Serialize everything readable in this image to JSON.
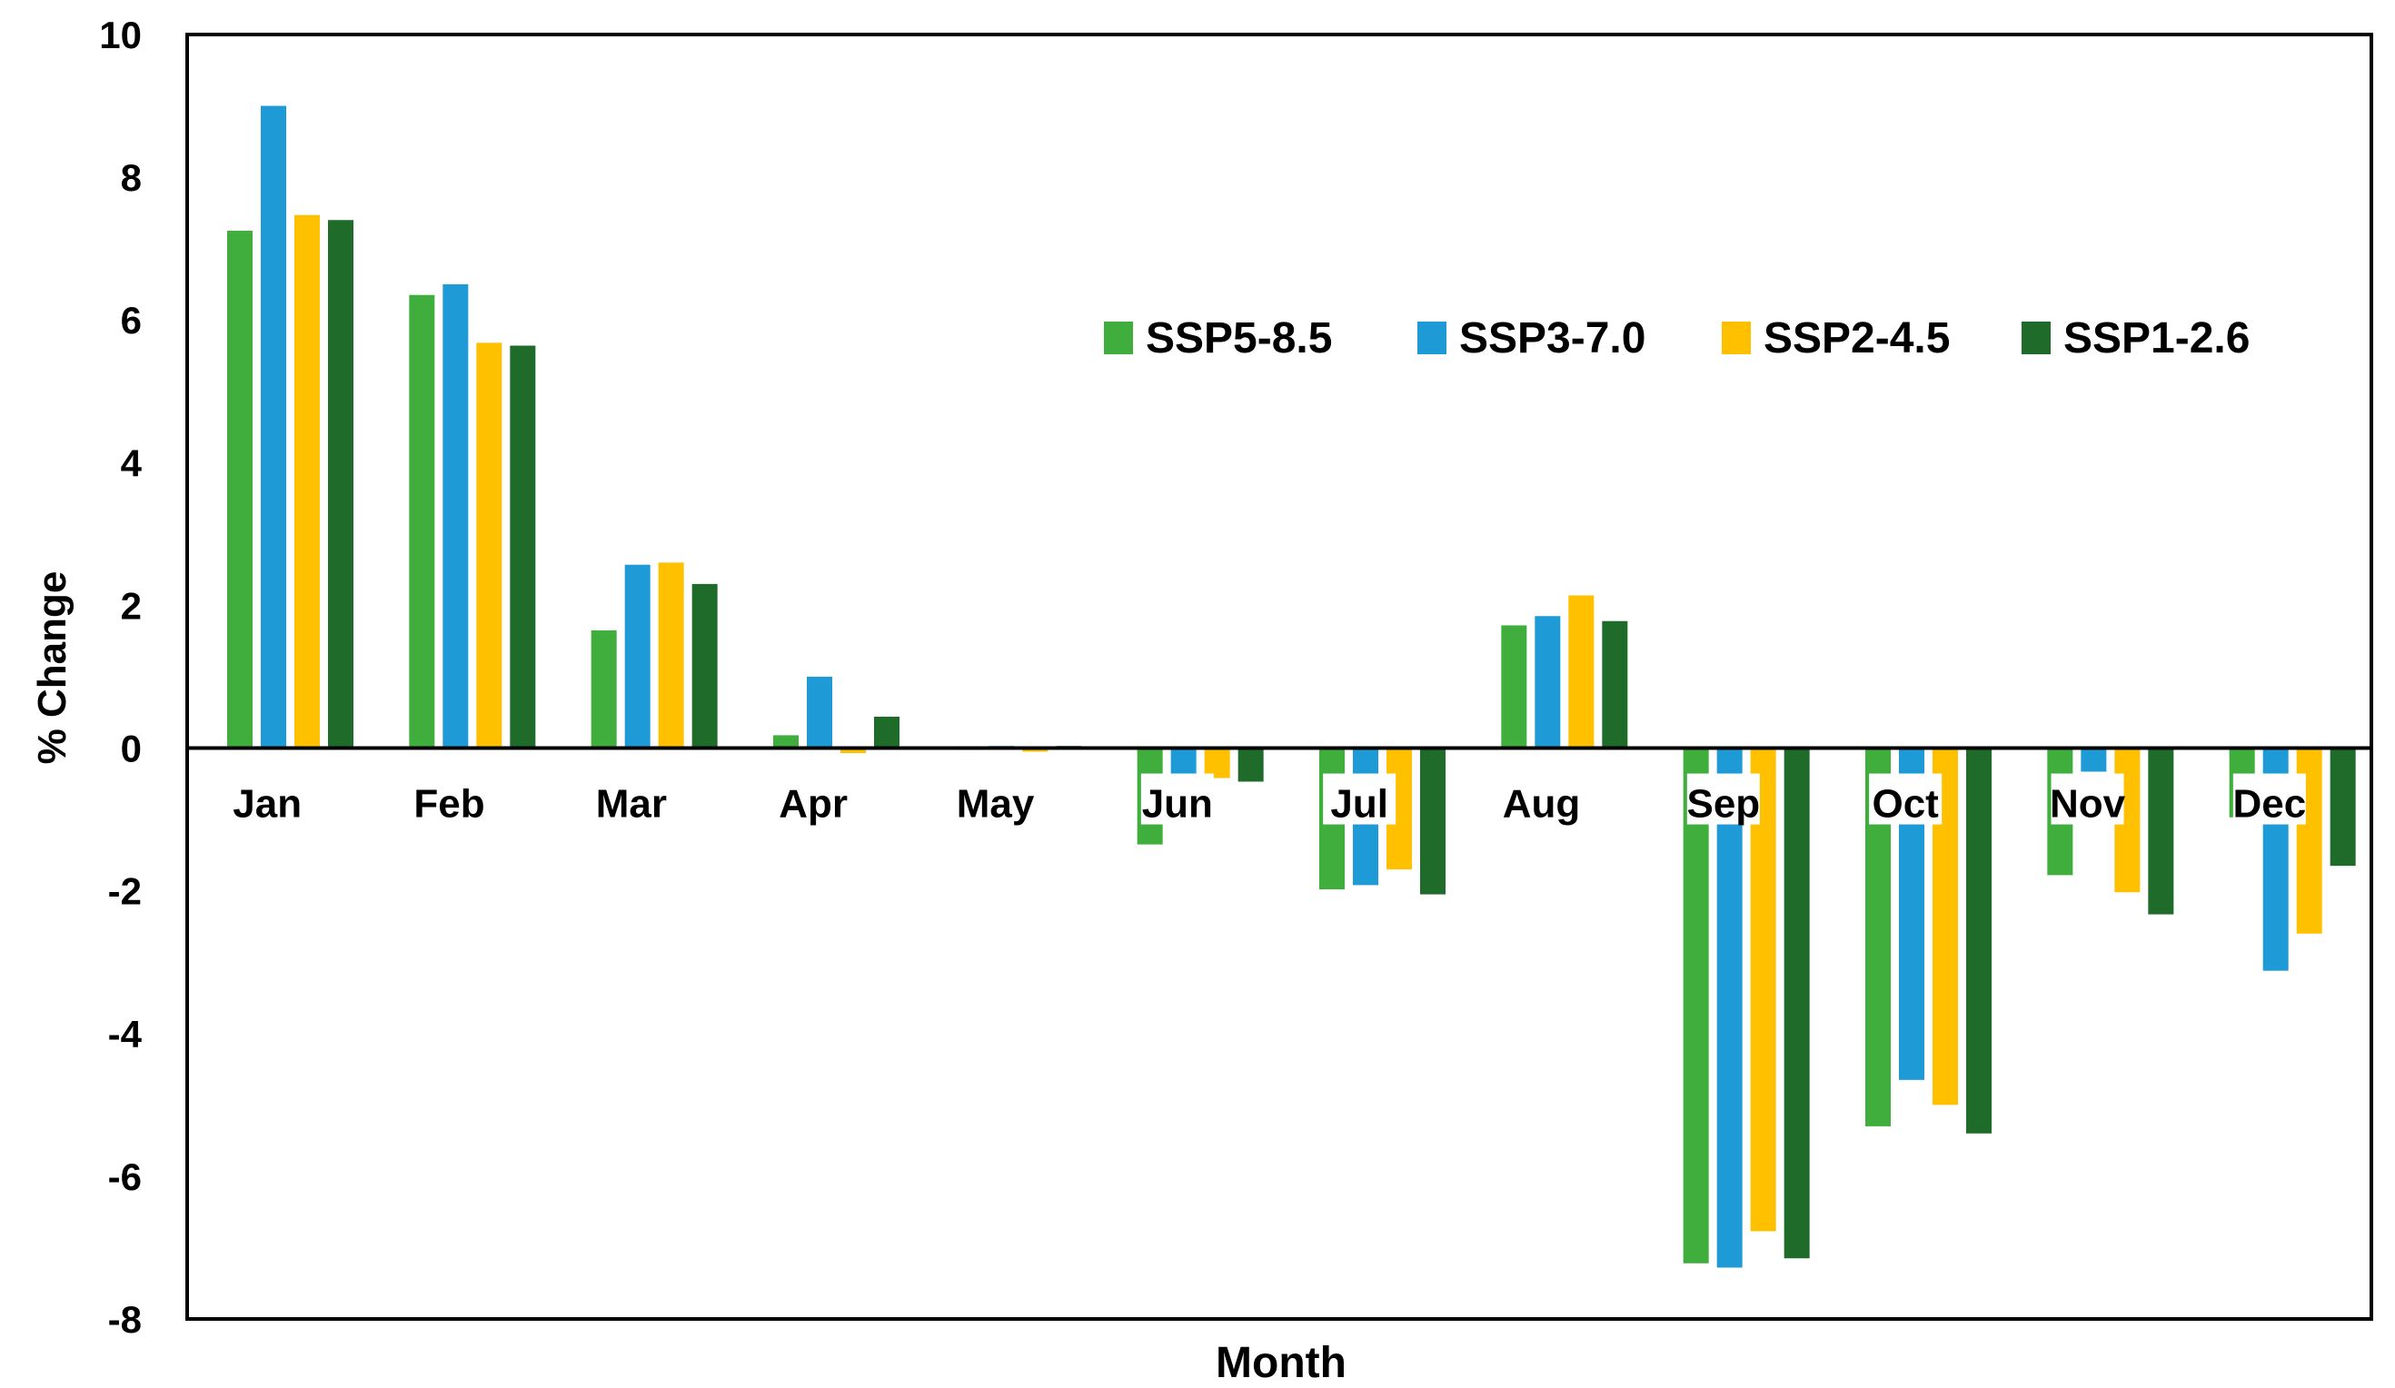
{
  "chart_data": {
    "type": "bar",
    "title": "",
    "xlabel": "Month",
    "ylabel": "% Change",
    "ylim": [
      -8,
      10
    ],
    "yticks": [
      10,
      8,
      6,
      4,
      2,
      0,
      -2,
      -4,
      -6,
      -8
    ],
    "grid": false,
    "legend_position": "top-right",
    "categories": [
      "Jan",
      "Feb",
      "Mar",
      "Apr",
      "May",
      "Jun",
      "Jul",
      "Aug",
      "Sep",
      "Oct",
      "Nov",
      "Dec"
    ],
    "series": [
      {
        "name": "SSP5-8.5",
        "color": "#3fae3c",
        "values": [
          7.25,
          6.35,
          1.65,
          0.18,
          -0.02,
          -1.35,
          -1.98,
          1.72,
          -7.22,
          -5.3,
          -1.78,
          -0.97
        ]
      },
      {
        "name": "SSP3-7.0",
        "color": "#1e9bd7",
        "values": [
          9.0,
          6.5,
          2.57,
          1.0,
          0.03,
          -0.42,
          -1.92,
          1.85,
          -7.28,
          -4.65,
          -0.33,
          -3.12
        ]
      },
      {
        "name": "SSP2-4.5",
        "color": "#ffc000",
        "values": [
          7.47,
          5.68,
          2.6,
          -0.07,
          -0.05,
          -0.42,
          -1.7,
          2.14,
          -6.77,
          -5.0,
          -2.02,
          -2.6
        ]
      },
      {
        "name": "SSP1-2.6",
        "color": "#1f6b2a",
        "values": [
          7.4,
          5.64,
          2.3,
          0.44,
          0.03,
          -0.47,
          -2.05,
          1.78,
          -7.15,
          -5.4,
          -2.33,
          -1.65
        ]
      }
    ]
  }
}
